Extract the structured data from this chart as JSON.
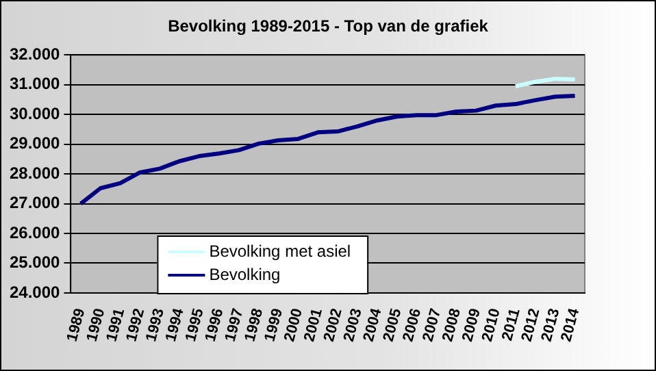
{
  "chart_data": {
    "type": "line",
    "title": "Bevolking 1989-2015 - Top van de grafiek",
    "categories": [
      "1989",
      "1990",
      "1991",
      "1992",
      "1993",
      "1994",
      "1995",
      "1996",
      "1997",
      "1998",
      "1999",
      "2000",
      "2001",
      "2002",
      "2003",
      "2004",
      "2005",
      "2006",
      "2007",
      "2008",
      "2009",
      "2010",
      "2011",
      "2012",
      "2013",
      "2014"
    ],
    "series": [
      {
        "name": "Bevolking met asiel",
        "color": "#ccffff",
        "values": [
          null,
          null,
          null,
          null,
          null,
          null,
          null,
          null,
          null,
          null,
          null,
          null,
          null,
          null,
          null,
          null,
          null,
          null,
          null,
          null,
          null,
          null,
          30950,
          31100,
          31200,
          31180
        ]
      },
      {
        "name": "Bevolking",
        "color": "#000080",
        "values": [
          27000,
          27520,
          27690,
          28050,
          28180,
          28430,
          28600,
          28690,
          28800,
          29020,
          29130,
          29180,
          29400,
          29430,
          29600,
          29800,
          29930,
          29980,
          29980,
          30100,
          30130,
          30300,
          30350,
          30480,
          30600,
          30630
        ]
      }
    ],
    "ylim": [
      24000,
      32000
    ],
    "yticks": [
      {
        "value": 24000,
        "label": "24.000"
      },
      {
        "value": 25000,
        "label": "25.000"
      },
      {
        "value": 26000,
        "label": "26.000"
      },
      {
        "value": 27000,
        "label": "27.000"
      },
      {
        "value": 28000,
        "label": "28.000"
      },
      {
        "value": 29000,
        "label": "29.000"
      },
      {
        "value": 30000,
        "label": "30.000"
      },
      {
        "value": 31000,
        "label": "31.000"
      },
      {
        "value": 32000,
        "label": "32.000"
      }
    ],
    "grid": "y",
    "legend": "bottom left",
    "marker": "none",
    "line_style": "solid"
  }
}
